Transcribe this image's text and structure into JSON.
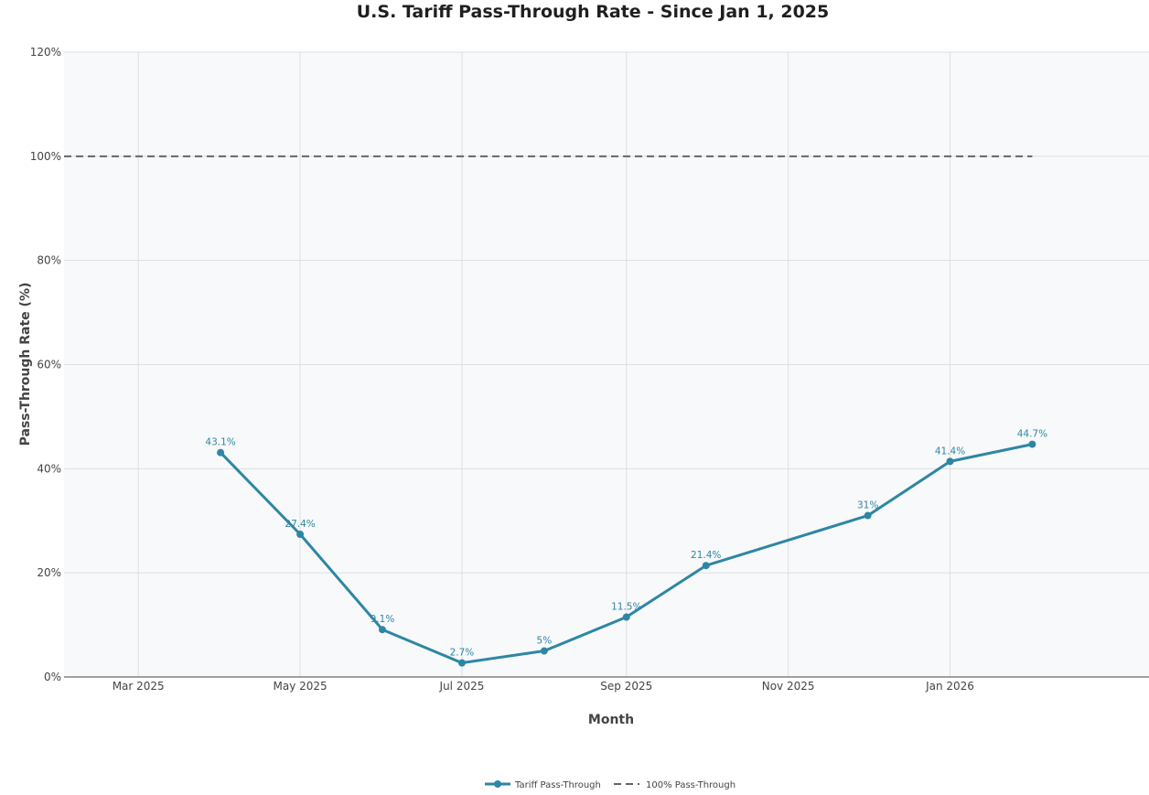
{
  "chart_data": {
    "type": "line",
    "title": "U.S. Tariff Pass-Through Rate - Since Jan 1, 2025",
    "xlabel": "Month",
    "ylabel": "Pass-Through Rate (%)",
    "x_ticks": [
      {
        "date": "2025-03-01",
        "label": "Mar 2025"
      },
      {
        "date": "2025-05-01",
        "label": "May 2025"
      },
      {
        "date": "2025-07-01",
        "label": "Jul 2025"
      },
      {
        "date": "2025-09-01",
        "label": "Sep 2025"
      },
      {
        "date": "2025-11-01",
        "label": "Nov 2025"
      },
      {
        "date": "2026-01-01",
        "label": "Jan 2026"
      }
    ],
    "xlim": [
      "2025-02-01",
      "2026-03-17"
    ],
    "y_ticks": [
      {
        "value": 0,
        "label": "0%"
      },
      {
        "value": 20,
        "label": "20%"
      },
      {
        "value": 40,
        "label": "40%"
      },
      {
        "value": 60,
        "label": "60%"
      },
      {
        "value": 80,
        "label": "80%"
      },
      {
        "value": 100,
        "label": "100%"
      },
      {
        "value": 120,
        "label": "120%"
      }
    ],
    "ylim": [
      0,
      120
    ],
    "grid": true,
    "legend_position": "bottom-center",
    "series": [
      {
        "name": "Tariff Pass-Through",
        "color": "#2e86a5",
        "style": "line-markers",
        "x": [
          "2025-04-01",
          "2025-05-01",
          "2025-06-01",
          "2025-07-01",
          "2025-08-01",
          "2025-09-01",
          "2025-10-01",
          "2025-12-01",
          "2026-01-01",
          "2026-02-01"
        ],
        "values": [
          43.1,
          27.4,
          9.1,
          2.7,
          5,
          11.5,
          21.4,
          31,
          41.4,
          44.7
        ],
        "labels": [
          "43.1%",
          "27.4%",
          "9.1%",
          "2.7%",
          "5%",
          "11.5%",
          "21.4%",
          "31%",
          "41.4%",
          "44.7%"
        ]
      },
      {
        "name": "100% Pass-Through",
        "color": "#666666",
        "style": "dashed",
        "x": [
          "2025-02-01",
          "2026-02-01"
        ],
        "values": [
          100,
          100
        ]
      }
    ]
  }
}
